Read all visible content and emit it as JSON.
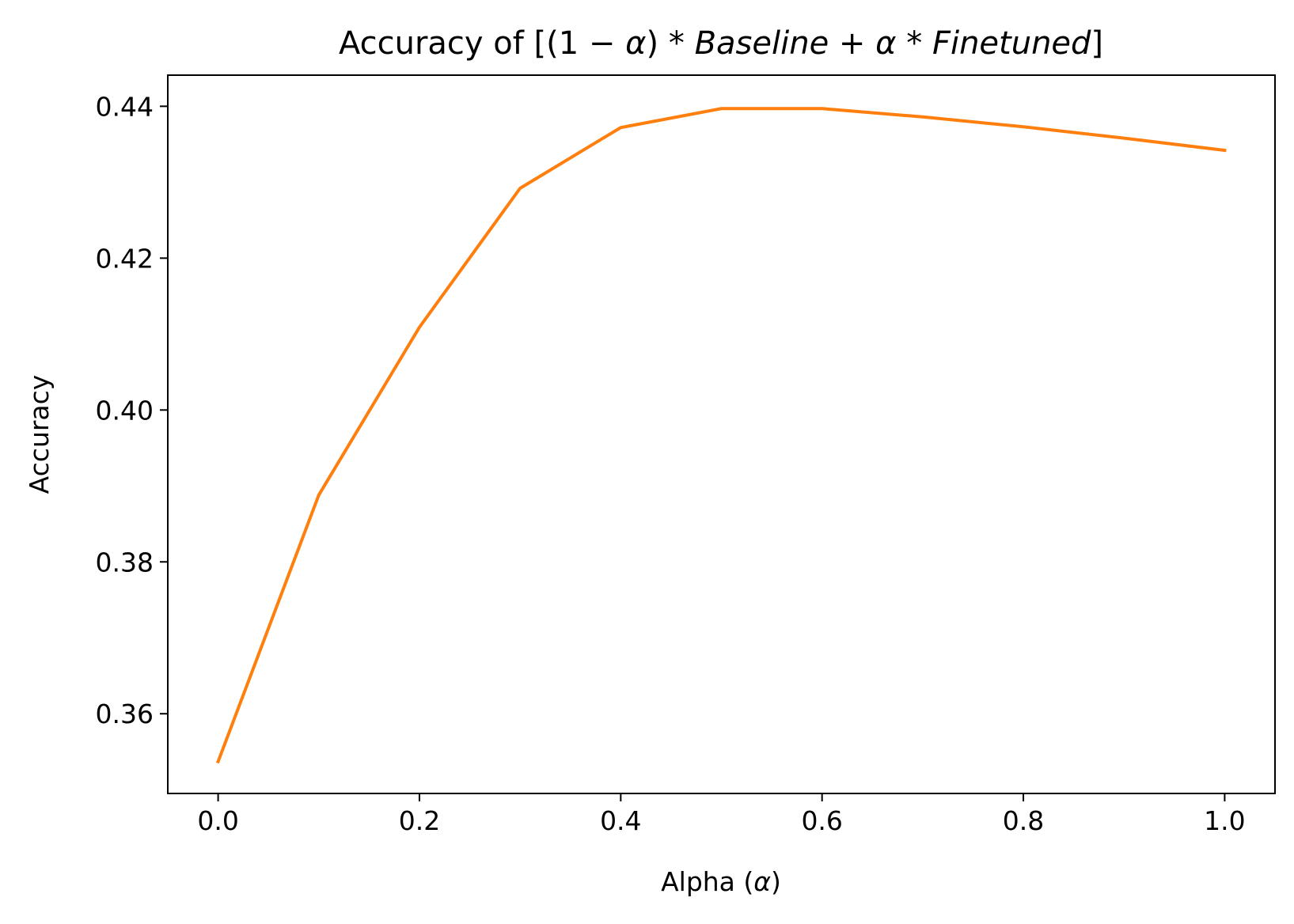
{
  "chart_data": {
    "type": "line",
    "title": {
      "prefix": "Accuracy of [(1 − ",
      "alpha1": "α",
      "mid1": ") * ",
      "word1": "Baseline",
      "mid2": " + ",
      "alpha2": "α",
      "mid3": " * ",
      "word2": "Finetuned",
      "suffix": "]"
    },
    "xlabel": {
      "prefix": "Alpha (",
      "alpha": "α",
      "suffix": ")"
    },
    "ylabel": "Accuracy",
    "xlim": [
      -0.05,
      1.05
    ],
    "ylim": [
      0.3495,
      0.4441
    ],
    "xticks": [
      0.0,
      0.2,
      0.4,
      0.6,
      0.8,
      1.0
    ],
    "xtick_labels": [
      "0.0",
      "0.2",
      "0.4",
      "0.6",
      "0.8",
      "1.0"
    ],
    "yticks": [
      0.36,
      0.38,
      0.4,
      0.42,
      0.44
    ],
    "ytick_labels": [
      "0.36",
      "0.38",
      "0.40",
      "0.42",
      "0.44"
    ],
    "grid": false,
    "series": [
      {
        "color": "#ff7f0e",
        "x": [
          0.0,
          0.1,
          0.2,
          0.3,
          0.4,
          0.5,
          0.6,
          0.7,
          0.8,
          0.9,
          1.0
        ],
        "y": [
          0.3537,
          0.3888,
          0.4109,
          0.4292,
          0.4372,
          0.4397,
          0.4397,
          0.4386,
          0.4373,
          0.4358,
          0.4342
        ]
      }
    ]
  }
}
